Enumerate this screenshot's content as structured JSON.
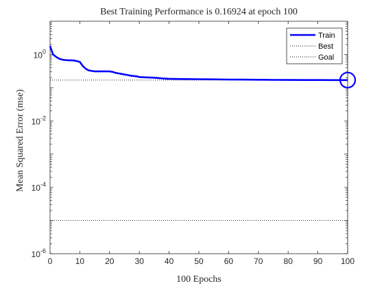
{
  "chart_data": {
    "type": "line",
    "title": "Best Training Performance is 0.16924 at epoch 100",
    "xlabel": "100 Epochs",
    "ylabel": "Mean Squared Error  (mse)",
    "xlim": [
      0,
      100
    ],
    "ylim": [
      1e-06,
      10
    ],
    "yscale": "log",
    "xticks": [
      0,
      10,
      20,
      30,
      40,
      50,
      60,
      70,
      80,
      90,
      100
    ],
    "yticks": [
      {
        "value": 1,
        "base": "10",
        "exp": "0"
      },
      {
        "value": 0.01,
        "base": "10",
        "exp": "-2"
      },
      {
        "value": 0.0001,
        "base": "10",
        "exp": "-4"
      },
      {
        "value": 1e-06,
        "base": "10",
        "exp": "-6"
      }
    ],
    "legend_position": "top-right",
    "series": [
      {
        "name": "Train",
        "color": "#0000ff",
        "x": [
          0,
          1,
          2,
          3,
          4,
          5,
          6,
          7,
          8,
          9,
          10,
          11,
          12,
          13,
          14,
          15,
          16,
          17,
          18,
          19,
          20,
          21,
          22,
          23,
          24,
          25,
          26,
          27,
          28,
          29,
          30,
          32,
          35,
          38,
          40,
          45,
          50,
          55,
          60,
          65,
          70,
          75,
          80,
          85,
          90,
          95,
          100
        ],
        "y": [
          1.8,
          1.0,
          0.85,
          0.75,
          0.7,
          0.68,
          0.67,
          0.67,
          0.66,
          0.63,
          0.6,
          0.45,
          0.37,
          0.33,
          0.32,
          0.31,
          0.31,
          0.31,
          0.31,
          0.31,
          0.31,
          0.3,
          0.28,
          0.27,
          0.26,
          0.25,
          0.24,
          0.23,
          0.225,
          0.22,
          0.21,
          0.205,
          0.2,
          0.19,
          0.185,
          0.182,
          0.18,
          0.178,
          0.176,
          0.175,
          0.173,
          0.172,
          0.171,
          0.17,
          0.17,
          0.1695,
          0.16924
        ]
      },
      {
        "name": "Best",
        "color": "#000000",
        "style": "dotted",
        "y": 0.16924,
        "x_vertical": 100
      },
      {
        "name": "Goal",
        "color": "#000000",
        "style": "dotted",
        "y": 1e-05
      }
    ],
    "best_marker": {
      "x": 100,
      "y": 0.16924,
      "color": "#0000ff"
    }
  }
}
